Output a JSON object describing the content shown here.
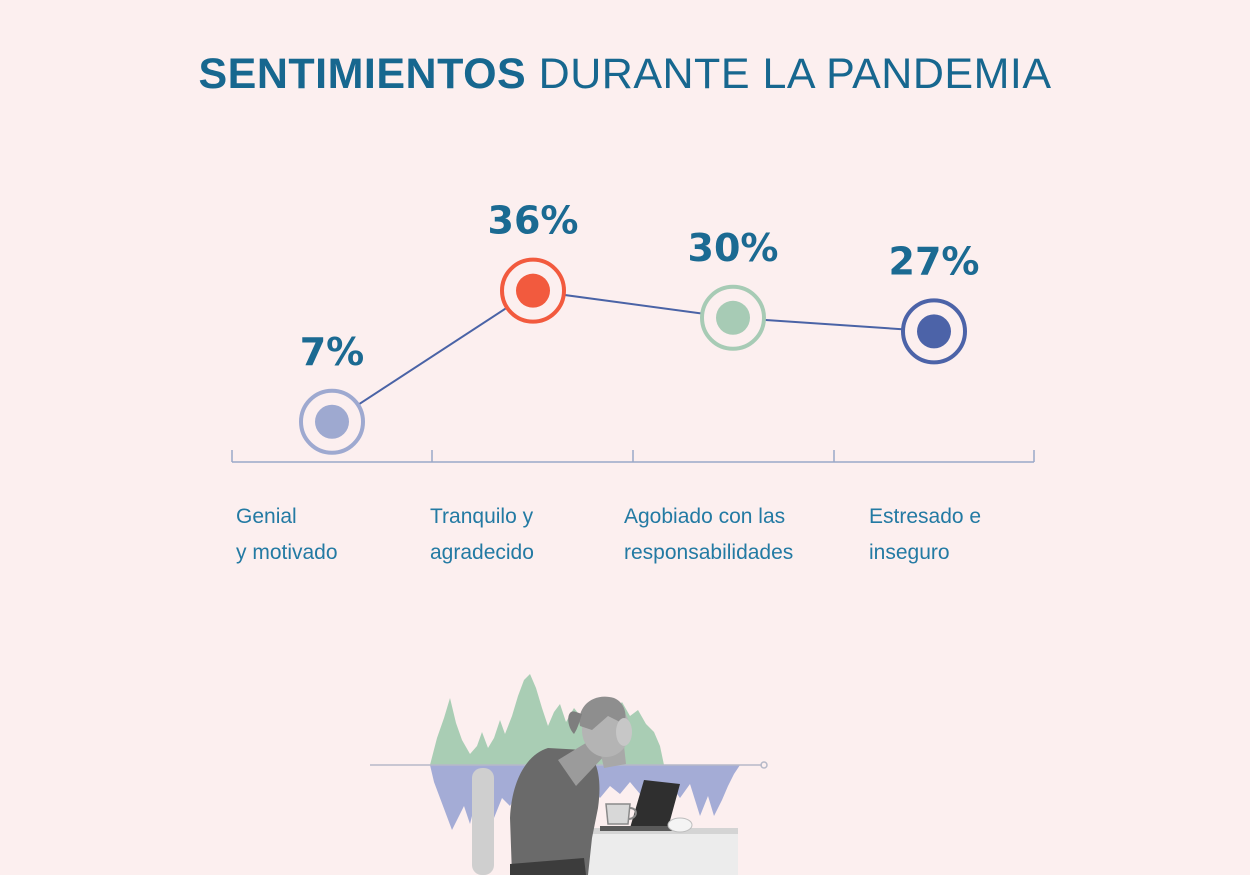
{
  "title": {
    "strong": "SENTIMIENTOS",
    "light": "DURANTE LA PANDEMIA"
  },
  "chart_data": {
    "type": "line",
    "title": "SENTIMIENTOS DURANTE LA PANDEMIA",
    "categories": [
      "Genial\ny motivado",
      "Tranquilo y\nagradecido",
      "Agobiado con las\nresponsabilidades",
      "Estresado e\ninseguro"
    ],
    "values": [
      7,
      36,
      30,
      27
    ],
    "value_labels": [
      "7%",
      "36%",
      "30%",
      "27%"
    ],
    "point_colors": [
      "#9ea9d0",
      "#f25a3e",
      "#a7cbb5",
      "#4c63a8"
    ],
    "line_color": "#4a63a6",
    "axis_color": "#9aa8c8"
  },
  "colors": {
    "background": "#fcefef",
    "title": "#17678f",
    "category_text": "#237aa3",
    "illustration_green": "#a9cdb4",
    "illustration_blue": "#a4acd6"
  },
  "illustration": {
    "icon": "stressed-woman-at-laptop-illustration"
  }
}
